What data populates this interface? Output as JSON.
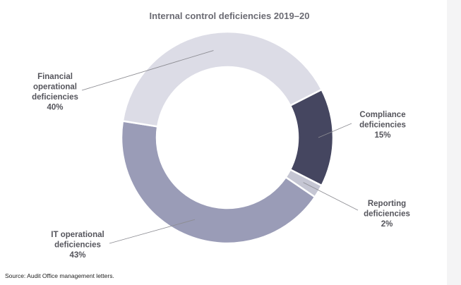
{
  "chart_data": {
    "type": "pie",
    "variant": "donut",
    "title": "Internal control deficiencies 2019–20",
    "slices": [
      {
        "label_lines": [
          "Compliance",
          "deficiencies",
          "15%"
        ],
        "value": 15,
        "color": "#454660"
      },
      {
        "label_lines": [
          "Reporting",
          "deficiencies",
          "2%"
        ],
        "value": 2,
        "color": "#c5c6d3"
      },
      {
        "label_lines": [
          "IT operational",
          "deficiencies",
          "43%"
        ],
        "value": 43,
        "color": "#9a9cb7"
      },
      {
        "label_lines": [
          "Financial",
          "operational",
          "deficiencies",
          "40%"
        ],
        "value": 40,
        "color": "#dcdce6"
      }
    ],
    "source": "Source: Audit Office management letters."
  }
}
